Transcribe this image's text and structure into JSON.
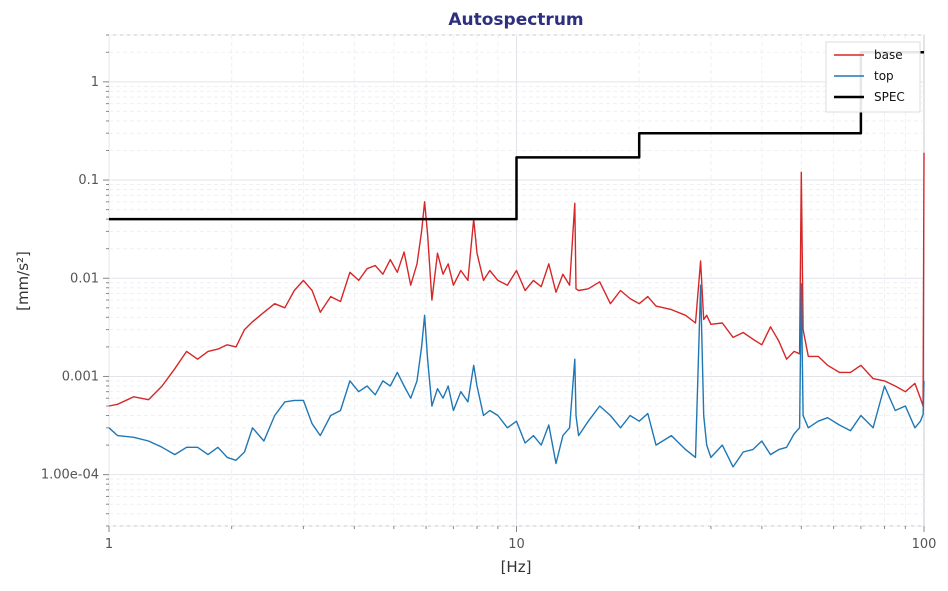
{
  "chart_data": {
    "type": "line",
    "title": "Autospectrum",
    "xlabel": "[Hz]",
    "ylabel": "[mm/s²]",
    "xscale": "log",
    "yscale": "log",
    "xlim": [
      1,
      100
    ],
    "ylim": [
      3e-05,
      3
    ],
    "x_ticks": [
      {
        "value": 1,
        "label": "1"
      },
      {
        "value": 10,
        "label": "10"
      },
      {
        "value": 100,
        "label": "100"
      }
    ],
    "y_ticks": [
      {
        "value": 0.0001,
        "label": "1.00e-04"
      },
      {
        "value": 0.001,
        "label": "0.001"
      },
      {
        "value": 0.01,
        "label": "0.01"
      },
      {
        "value": 0.1,
        "label": "0.1"
      },
      {
        "value": 1,
        "label": "1"
      }
    ],
    "grid": true,
    "legend_position": "top-right",
    "colors": {
      "title": "#2f2f7f",
      "base": "#d62728",
      "top": "#1f77b4",
      "spec": "#000000"
    },
    "series": [
      {
        "name": "base",
        "color": "#d62728",
        "x": [
          1,
          1.05,
          1.15,
          1.25,
          1.35,
          1.45,
          1.55,
          1.65,
          1.75,
          1.85,
          1.95,
          2.05,
          2.15,
          2.25,
          2.4,
          2.55,
          2.7,
          2.85,
          3.0,
          3.15,
          3.3,
          3.5,
          3.7,
          3.9,
          4.1,
          4.3,
          4.5,
          4.7,
          4.9,
          5.1,
          5.3,
          5.5,
          5.7,
          5.85,
          5.95,
          6.05,
          6.2,
          6.4,
          6.6,
          6.8,
          7.0,
          7.3,
          7.6,
          7.85,
          8.0,
          8.3,
          8.6,
          9.0,
          9.5,
          10.0,
          10.5,
          11.0,
          11.5,
          12.0,
          12.5,
          13.0,
          13.5,
          13.9,
          14.0,
          14.2,
          15.0,
          16.0,
          17.0,
          18.0,
          19.0,
          20.0,
          21.0,
          22.0,
          24.0,
          26.0,
          27.5,
          28.3,
          28.8,
          29.3,
          30.0,
          32.0,
          34.0,
          36.0,
          38.0,
          40.0,
          42.0,
          44.0,
          46.0,
          48.0,
          49.5,
          50.0,
          50.5,
          52.0,
          55.0,
          58.0,
          62.0,
          66.0,
          70.0,
          75.0,
          80.0,
          85.0,
          90.0,
          95.0,
          98.0,
          99.5,
          100
        ],
        "y": [
          0.0005,
          0.00052,
          0.00062,
          0.00058,
          0.0008,
          0.0012,
          0.0018,
          0.0015,
          0.0018,
          0.0019,
          0.0021,
          0.002,
          0.003,
          0.0036,
          0.0045,
          0.0055,
          0.005,
          0.0075,
          0.0095,
          0.0075,
          0.0045,
          0.0065,
          0.0058,
          0.0115,
          0.0095,
          0.0125,
          0.0135,
          0.011,
          0.0155,
          0.0115,
          0.0185,
          0.0085,
          0.014,
          0.03,
          0.06,
          0.028,
          0.006,
          0.018,
          0.011,
          0.014,
          0.0085,
          0.012,
          0.0095,
          0.04,
          0.018,
          0.0095,
          0.012,
          0.0095,
          0.0085,
          0.012,
          0.0075,
          0.0095,
          0.0082,
          0.014,
          0.0072,
          0.011,
          0.0085,
          0.058,
          0.0078,
          0.0075,
          0.0078,
          0.0092,
          0.0055,
          0.0075,
          0.0062,
          0.0055,
          0.0065,
          0.0052,
          0.0048,
          0.0042,
          0.0035,
          0.015,
          0.0038,
          0.0042,
          0.0034,
          0.0035,
          0.0025,
          0.0028,
          0.0024,
          0.0021,
          0.0032,
          0.0023,
          0.0015,
          0.0018,
          0.0017,
          0.12,
          0.003,
          0.0016,
          0.0016,
          0.0013,
          0.0011,
          0.0011,
          0.0013,
          0.00095,
          0.0009,
          0.0008,
          0.0007,
          0.00085,
          0.0006,
          0.0005,
          0.19
        ]
      },
      {
        "name": "top",
        "color": "#1f77b4",
        "x": [
          1,
          1.05,
          1.15,
          1.25,
          1.35,
          1.45,
          1.55,
          1.65,
          1.75,
          1.85,
          1.95,
          2.05,
          2.15,
          2.25,
          2.4,
          2.55,
          2.7,
          2.85,
          3.0,
          3.15,
          3.3,
          3.5,
          3.7,
          3.9,
          4.1,
          4.3,
          4.5,
          4.7,
          4.9,
          5.1,
          5.3,
          5.5,
          5.7,
          5.85,
          5.95,
          6.05,
          6.2,
          6.4,
          6.6,
          6.8,
          7.0,
          7.3,
          7.6,
          7.85,
          8.0,
          8.3,
          8.6,
          9.0,
          9.5,
          10.0,
          10.5,
          11.0,
          11.5,
          12.0,
          12.5,
          13.0,
          13.5,
          13.9,
          14.0,
          14.2,
          15.0,
          16.0,
          17.0,
          18.0,
          19.0,
          20.0,
          21.0,
          22.0,
          24.0,
          26.0,
          27.5,
          28.3,
          28.8,
          29.3,
          30.0,
          32.0,
          34.0,
          36.0,
          38.0,
          40.0,
          42.0,
          44.0,
          46.0,
          48.0,
          49.5,
          50.0,
          50.5,
          52.0,
          55.0,
          58.0,
          62.0,
          66.0,
          70.0,
          75.0,
          80.0,
          85.0,
          90.0,
          95.0,
          98.0,
          99.5,
          100
        ],
        "y": [
          0.0003,
          0.00025,
          0.00024,
          0.00022,
          0.00019,
          0.00016,
          0.00019,
          0.00019,
          0.00016,
          0.00019,
          0.00015,
          0.00014,
          0.00017,
          0.0003,
          0.00022,
          0.0004,
          0.00055,
          0.00057,
          0.00057,
          0.00033,
          0.00025,
          0.0004,
          0.00045,
          0.0009,
          0.0007,
          0.0008,
          0.00065,
          0.0009,
          0.0008,
          0.0011,
          0.0008,
          0.0006,
          0.0009,
          0.002,
          0.0042,
          0.0015,
          0.0005,
          0.00075,
          0.0006,
          0.0008,
          0.00045,
          0.0007,
          0.00055,
          0.0013,
          0.0008,
          0.0004,
          0.00045,
          0.0004,
          0.0003,
          0.00035,
          0.00021,
          0.00025,
          0.0002,
          0.00032,
          0.00013,
          0.00025,
          0.0003,
          0.0015,
          0.0004,
          0.00025,
          0.00035,
          0.0005,
          0.0004,
          0.0003,
          0.0004,
          0.00035,
          0.00042,
          0.0002,
          0.00025,
          0.00018,
          0.00015,
          0.0085,
          0.0004,
          0.0002,
          0.00015,
          0.0002,
          0.00012,
          0.00017,
          0.00018,
          0.00022,
          0.00016,
          0.00018,
          0.00019,
          0.00026,
          0.0003,
          0.0088,
          0.0004,
          0.0003,
          0.00035,
          0.00038,
          0.00032,
          0.00028,
          0.0004,
          0.0003,
          0.0008,
          0.00045,
          0.0005,
          0.0003,
          0.00035,
          0.00041,
          0.0009
        ]
      },
      {
        "name": "SPEC",
        "color": "#000000",
        "x": [
          1,
          10,
          10,
          20,
          20,
          70,
          70,
          100
        ],
        "y": [
          0.04,
          0.04,
          0.17,
          0.17,
          0.3,
          0.3,
          2.0,
          2.0
        ]
      }
    ]
  }
}
